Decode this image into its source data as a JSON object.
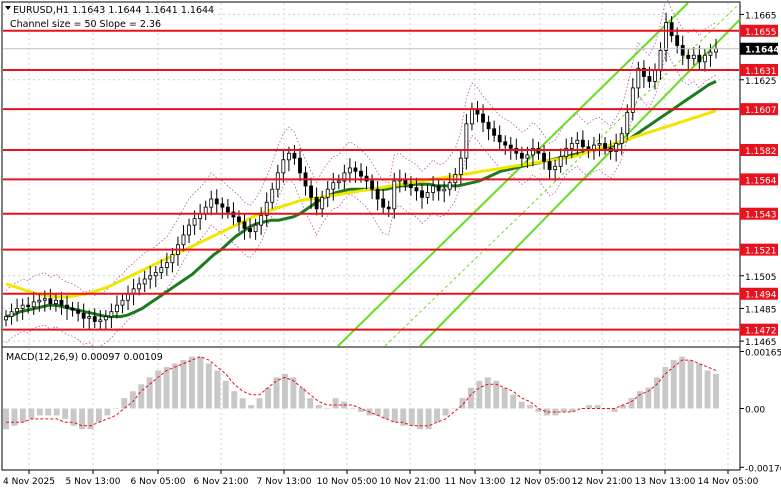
{
  "header": {
    "symbol_line": "EURUSD,H1  1.1643 1.1644 1.1641 1.1644",
    "channel_line": "Channel size = 50 Slope = 2.36"
  },
  "macd": {
    "label": "MACD(12,26,9) 0.00097 0.00109",
    "ticks": [
      "0.00165",
      "0.00",
      "-0.00170"
    ]
  },
  "price_axis_ticks": [
    "1.1665",
    "1.1625",
    "1.1505",
    "1.1485",
    "1.1465"
  ],
  "levels": [
    {
      "label": "1.1655",
      "value": 1.1655
    },
    {
      "label": "1.1631",
      "value": 1.1631
    },
    {
      "label": "1.1607",
      "value": 1.1607
    },
    {
      "label": "1.1582",
      "value": 1.1582
    },
    {
      "label": "1.1564",
      "value": 1.1564
    },
    {
      "label": "1.1543",
      "value": 1.1543
    },
    {
      "label": "1.1521",
      "value": 1.1521
    },
    {
      "label": "1.1494",
      "value": 1.1494
    },
    {
      "label": "1.1472",
      "value": 1.1472
    }
  ],
  "current_price": {
    "label": "1.1644",
    "value": 1.1644
  },
  "time_axis": [
    "4 Nov 2025",
    "5 Nov 13:00",
    "6 Nov 05:00",
    "6 Nov 21:00",
    "7 Nov 13:00",
    "10 Nov 05:00",
    "10 Nov 21:00",
    "11 Nov 13:00",
    "12 Nov 05:00",
    "12 Nov 21:00",
    "13 Nov 13:00",
    "14 Nov 05:00"
  ],
  "colors": {
    "level": "#e8121e",
    "candle": "#000000",
    "ma_fast": "#1f7a1f",
    "ma_slow": "#f2e600",
    "channel": "#66dd22",
    "bollinger": "#b94fb0",
    "macd_hist": "#c8c8c8",
    "macd_signal": "#e8121e",
    "grid": "#d0d0d0"
  },
  "chart_data": {
    "type": "candlestick",
    "symbol": "EURUSD",
    "timeframe": "H1",
    "ohlc_last": {
      "open": 1.1643,
      "high": 1.1644,
      "low": 1.1641,
      "close": 1.1644
    },
    "y_range": [
      1.1462,
      1.1672
    ],
    "closes": [
      1.148,
      1.1483,
      1.1485,
      1.1487,
      1.1486,
      1.1489,
      1.149,
      1.1491,
      1.1488,
      1.149,
      1.1487,
      1.1485,
      1.1484,
      1.1482,
      1.1479,
      1.148,
      1.1477,
      1.1478,
      1.148,
      1.1483,
      1.1487,
      1.149,
      1.1494,
      1.1497,
      1.15,
      1.1503,
      1.1505,
      1.1507,
      1.151,
      1.1513,
      1.1518,
      1.1524,
      1.153,
      1.1536,
      1.154,
      1.1543,
      1.1547,
      1.1552,
      1.1549,
      1.1547,
      1.1544,
      1.1541,
      1.1538,
      1.1534,
      1.1532,
      1.1536,
      1.1542,
      1.155,
      1.1558,
      1.1568,
      1.1576,
      1.158,
      1.1577,
      1.1568,
      1.156,
      1.1553,
      1.1546,
      1.1553,
      1.1558,
      1.1562,
      1.1563,
      1.1568,
      1.1571,
      1.1569,
      1.1566,
      1.1563,
      1.1558,
      1.1552,
      1.1547,
      1.1546,
      1.1563,
      1.1564,
      1.1561,
      1.1559,
      1.1557,
      1.1553,
      1.1556,
      1.156,
      1.1557,
      1.1558,
      1.1562,
      1.1567,
      1.1577,
      1.1598,
      1.1607,
      1.1604,
      1.1599,
      1.1595,
      1.1591,
      1.1587,
      1.1585,
      1.1583,
      1.158,
      1.1577,
      1.1579,
      1.1583,
      1.158,
      1.1575,
      1.157,
      1.1572,
      1.1578,
      1.1583,
      1.1586,
      1.1588,
      1.1584,
      1.1582,
      1.1585,
      1.1586,
      1.1583,
      1.1581,
      1.1586,
      1.1592,
      1.1605,
      1.162,
      1.1632,
      1.1627,
      1.1624,
      1.1631,
      1.1643,
      1.166,
      1.1652,
      1.1646,
      1.164,
      1.1638,
      1.164,
      1.1636,
      1.164,
      1.1642,
      1.1644
    ],
    "ma_fast": [
      1.148,
      1.1481,
      1.1483,
      1.1484,
      1.1485,
      1.1486,
      1.1487,
      1.1487,
      1.1486,
      1.1485,
      1.1484,
      1.1483,
      1.1482,
      1.1481,
      1.148,
      1.148,
      1.148,
      1.1481,
      1.1483,
      1.1485,
      1.1488,
      1.1491,
      1.1494,
      1.1497,
      1.15,
      1.1503,
      1.1506,
      1.151,
      1.1514,
      1.1518,
      1.1521,
      1.1525,
      1.1529,
      1.1532,
      1.1535,
      1.1537,
      1.1538,
      1.1539,
      1.1539,
      1.154,
      1.1541,
      1.1543,
      1.1546,
      1.1549,
      1.1552,
      1.1554,
      1.1556,
      1.1557,
      1.1558,
      1.1558,
      1.1558,
      1.1558,
      1.1558,
      1.1558,
      1.1559,
      1.156,
      1.156,
      1.1561,
      1.1561,
      1.1561,
      1.156,
      1.156,
      1.156,
      1.156,
      1.1561,
      1.1562,
      1.1563,
      1.1565,
      1.1567,
      1.1569,
      1.157,
      1.1571,
      1.1572,
      1.1573,
      1.1574,
      1.1575,
      1.1576,
      1.1577,
      1.1578,
      1.1579,
      1.158,
      1.1581,
      1.1582,
      1.1583,
      1.1584,
      1.1585,
      1.1587,
      1.1589,
      1.1592,
      1.1595,
      1.1598,
      1.1601,
      1.1604,
      1.1607,
      1.161,
      1.1613,
      1.1616,
      1.1619,
      1.1622,
      1.1624
    ],
    "ma_slow": [
      1.15,
      1.1498,
      1.1496,
      1.1494,
      1.1493,
      1.1492,
      1.1492,
      1.1493,
      1.1494,
      1.1496,
      1.1498,
      1.1501,
      1.1504,
      1.1507,
      1.151,
      1.1513,
      1.1516,
      1.1519,
      1.1522,
      1.1525,
      1.1528,
      1.1531,
      1.1534,
      1.1537,
      1.154,
      1.1543,
      1.1545,
      1.1547,
      1.1549,
      1.1551,
      1.1552,
      1.1553,
      1.1554,
      1.1555,
      1.1556,
      1.1557,
      1.1558,
      1.1559,
      1.156,
      1.1561,
      1.1562,
      1.1563,
      1.1564,
      1.1565,
      1.1566,
      1.1567,
      1.1568,
      1.1569,
      1.157,
      1.1571,
      1.1572,
      1.1573,
      1.1574,
      1.1575,
      1.1576,
      1.1577,
      1.1578,
      1.158,
      1.1582,
      1.1584,
      1.1586,
      1.1588,
      1.159,
      1.1592,
      1.1594,
      1.1596,
      1.1598,
      1.16,
      1.1602,
      1.1604,
      1.1606
    ],
    "macd_ticks": [
      0.00165,
      0.0,
      -0.0017
    ],
    "macd_range": [
      -0.00175,
      0.00175
    ],
    "macd_hist": [
      -0.0006,
      -0.0005,
      -0.0004,
      -0.0003,
      -0.0002,
      -0.0002,
      -0.0002,
      -0.0003,
      -0.0005,
      -0.0006,
      -0.0006,
      -0.0004,
      -0.0002,
      0.0,
      0.0003,
      0.0005,
      0.0007,
      0.0009,
      0.0011,
      0.0012,
      0.0013,
      0.0014,
      0.0015,
      0.0015,
      0.0013,
      0.0011,
      0.0008,
      0.0005,
      0.0003,
      0.0001,
      0.0003,
      0.0006,
      0.0009,
      0.001,
      0.0009,
      0.0006,
      0.0003,
      0.0001,
      0.0,
      0.0003,
      0.0002,
      0.0,
      -0.0001,
      -0.0002,
      -0.0002,
      -0.0003,
      -0.0004,
      -0.0005,
      -0.0005,
      -0.0006,
      -0.0006,
      -0.0004,
      -0.0002,
      0.0,
      0.0003,
      0.0006,
      0.0008,
      0.0009,
      0.0008,
      0.0006,
      0.0004,
      0.0002,
      0.0001,
      -0.0001,
      -0.0002,
      -0.0002,
      -0.0001,
      -0.0001,
      0.0,
      0.0001,
      0.0001,
      0.0,
      -0.0001,
      0.0001,
      0.0003,
      0.0005,
      0.0006,
      0.0009,
      0.0012,
      0.0014,
      0.0015,
      0.0014,
      0.0013,
      0.0011,
      0.001
    ],
    "macd_signal": [
      -0.0004,
      -0.0004,
      -0.0004,
      -0.0003,
      -0.0003,
      -0.0003,
      -0.0003,
      -0.0004,
      -0.0004,
      -0.0005,
      -0.0005,
      -0.0004,
      -0.0003,
      -0.0002,
      0.0,
      0.0002,
      0.0005,
      0.0007,
      0.0009,
      0.0011,
      0.0012,
      0.0013,
      0.0014,
      0.0015,
      0.0014,
      0.0012,
      0.001,
      0.0007,
      0.0005,
      0.0004,
      0.0004,
      0.0006,
      0.0008,
      0.0009,
      0.0008,
      0.0006,
      0.0004,
      0.0002,
      0.0001,
      0.0001,
      0.0001,
      0.0001,
      0.0,
      -0.0001,
      -0.0002,
      -0.0003,
      -0.0004,
      -0.0004,
      -0.0005,
      -0.0005,
      -0.0005,
      -0.0004,
      -0.0003,
      -0.0001,
      0.0001,
      0.0004,
      0.0006,
      0.0007,
      0.0007,
      0.0006,
      0.0005,
      0.0003,
      0.0002,
      0.0,
      -0.0001,
      -0.0001,
      -0.0001,
      -0.0001,
      0.0,
      0.0,
      0.0,
      0.0,
      0.0,
      0.0001,
      0.0002,
      0.0004,
      0.0005,
      0.0007,
      0.001,
      0.0012,
      0.0014,
      0.0014,
      0.0013,
      0.0012,
      0.0011
    ]
  }
}
